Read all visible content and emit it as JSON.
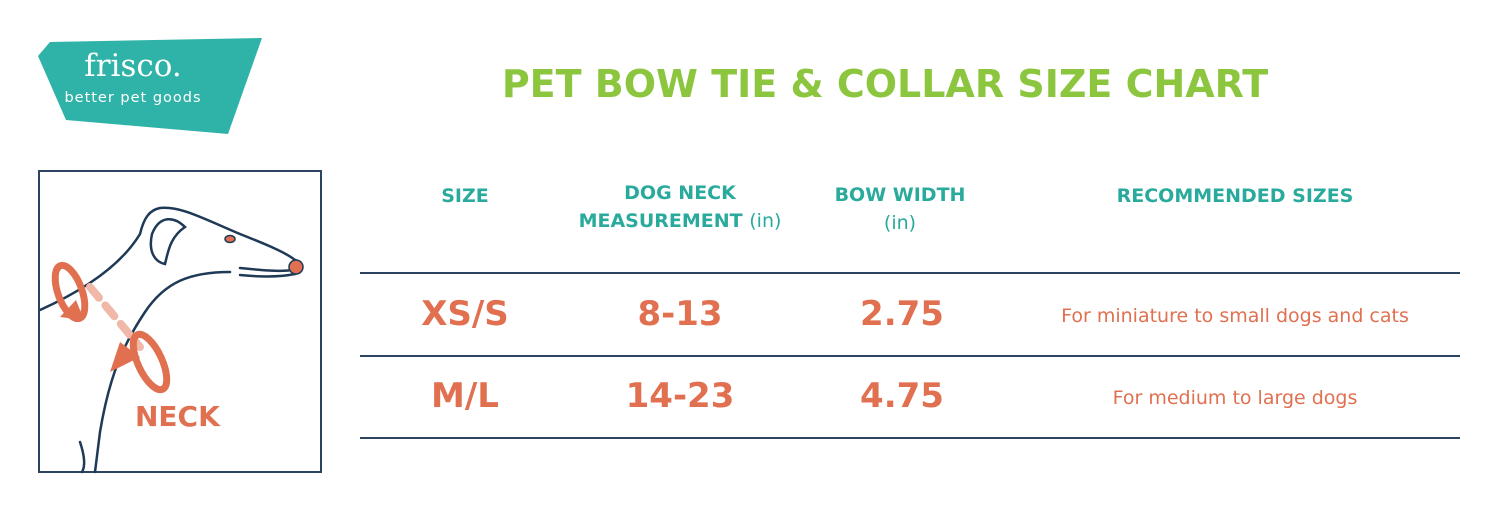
{
  "brand": {
    "name": "frisco.",
    "tagline": "better pet goods",
    "color": "#2fb3a8"
  },
  "title": "PET BOW TIE & COLLAR SIZE CHART",
  "illustration": {
    "label": "NECK"
  },
  "colors": {
    "heading": "#8cc63f",
    "header": "#2aaa9c",
    "values": "#e07050",
    "lines": "#2d4461"
  },
  "table": {
    "headers": [
      {
        "line1": "SIZE",
        "line2": "",
        "unit": ""
      },
      {
        "line1": "DOG NECK",
        "line2": "MEASUREMENT",
        "unit": "(in)"
      },
      {
        "line1": "BOW WIDTH",
        "line2": "",
        "unit": "(in)"
      },
      {
        "line1": "RECOMMENDED SIZES",
        "line2": "",
        "unit": ""
      }
    ],
    "rows": [
      {
        "size": "XS/S",
        "neck": "8-13",
        "bow": "2.75",
        "recommended": "For miniature to small dogs and cats"
      },
      {
        "size": "M/L",
        "neck": "14-23",
        "bow": "4.75",
        "recommended": "For medium to large dogs"
      }
    ]
  }
}
